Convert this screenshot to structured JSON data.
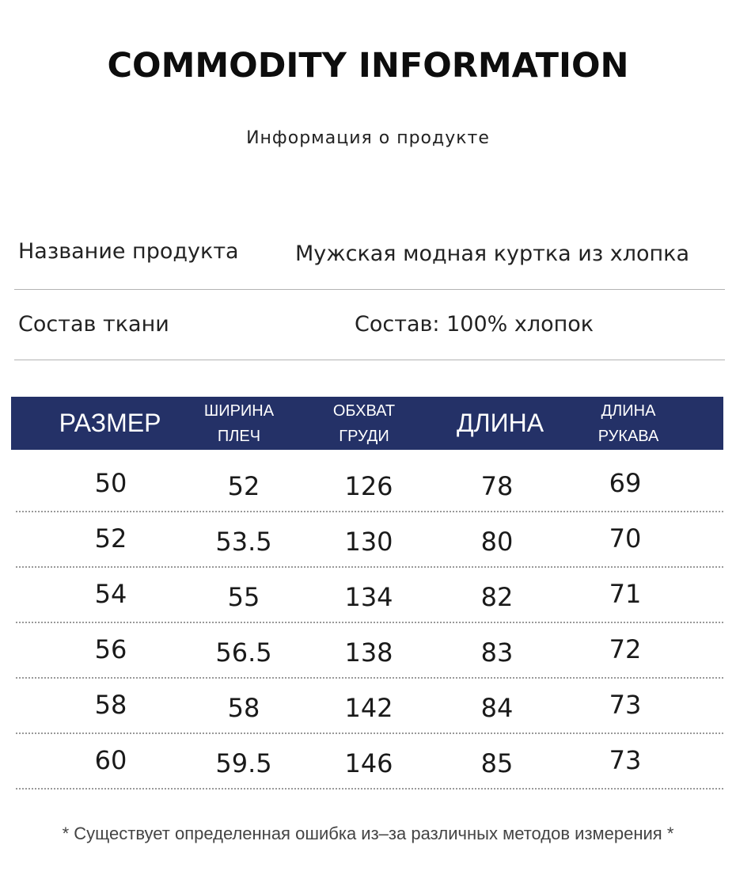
{
  "header": {
    "title": "COMMODITY INFORMATION",
    "subtitle": "Информация о продукте"
  },
  "product_info": [
    {
      "label": "Название продукта",
      "value": "Мужская модная куртка из хлопка"
    },
    {
      "label": "Состав ткани",
      "value": "Состав: 100% хлопок"
    }
  ],
  "size_table": {
    "header_color": "#243167",
    "columns": [
      {
        "lines": [
          "РАЗМЕР"
        ]
      },
      {
        "lines": [
          "ШИРИНА",
          "ПЛЕЧ"
        ]
      },
      {
        "lines": [
          "ОБХВАТ",
          "ГРУДИ"
        ]
      },
      {
        "lines": [
          "ДЛИНА"
        ]
      },
      {
        "lines": [
          "ДЛИНА",
          "РУКАВА"
        ]
      }
    ],
    "rows": [
      [
        "50",
        "52",
        "126",
        "78",
        "69"
      ],
      [
        "52",
        "53.5",
        "130",
        "80",
        "70"
      ],
      [
        "54",
        "55",
        "134",
        "82",
        "71"
      ],
      [
        "56",
        "56.5",
        "138",
        "83",
        "72"
      ],
      [
        "58",
        "58",
        "142",
        "84",
        "73"
      ],
      [
        "60",
        "59.5",
        "146",
        "85",
        "73"
      ]
    ]
  },
  "footnote": "* Существует определенная ошибка из–за различных методов измерения *"
}
